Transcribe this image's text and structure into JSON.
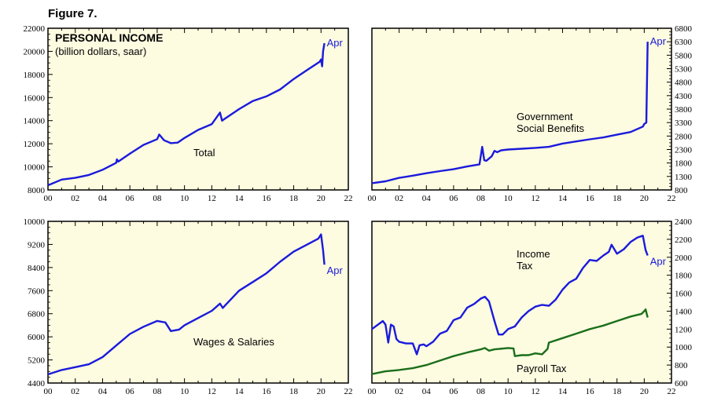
{
  "figure_label": "Figure 7.",
  "chart_data": [
    {
      "type": "line",
      "title": "PERSONAL INCOME",
      "subtitle": "(billion dollars, saar)",
      "x_ticks": [
        "00",
        "02",
        "04",
        "06",
        "08",
        "10",
        "12",
        "14",
        "16",
        "18",
        "20",
        "22"
      ],
      "xlim": [
        2000,
        2022
      ],
      "ylim": [
        8000,
        22000
      ],
      "y_ticks": [
        "8000",
        "10000",
        "12000",
        "14000",
        "16000",
        "18000",
        "20000",
        "22000"
      ],
      "y_axis_side": "left",
      "grid": false,
      "series": [
        {
          "name": "Total",
          "color": "#1a1adc",
          "end_label": "Apr",
          "x": [
            2000,
            2001,
            2002,
            2003,
            2004,
            2005,
            2005.05,
            2005.15,
            2006,
            2007,
            2008,
            2008.15,
            2008.5,
            2009,
            2009.5,
            2010,
            2011,
            2012,
            2012.6,
            2012.75,
            2013,
            2014,
            2015,
            2016,
            2017,
            2018,
            2019,
            2019.9,
            2020.0,
            2020.08,
            2020.15,
            2020.25
          ],
          "y": [
            8400,
            8900,
            9050,
            9300,
            9750,
            10350,
            10650,
            10450,
            11150,
            11900,
            12400,
            12800,
            12300,
            12050,
            12100,
            12500,
            13200,
            13700,
            14700,
            14000,
            14200,
            15000,
            15700,
            16100,
            16700,
            17600,
            18400,
            19100,
            19300,
            18700,
            20000,
            20700
          ]
        },
        {
          "name": "",
          "color": "#1a1adc",
          "end_label": "",
          "x": [],
          "y": []
        }
      ]
    },
    {
      "type": "line",
      "title": "",
      "x_ticks": [
        "00",
        "02",
        "04",
        "06",
        "08",
        "10",
        "12",
        "14",
        "16",
        "18",
        "20",
        "22"
      ],
      "xlim": [
        2000,
        2022
      ],
      "ylim": [
        800,
        6800
      ],
      "y_ticks": [
        "800",
        "1300",
        "1800",
        "2300",
        "2800",
        "3300",
        "3800",
        "4300",
        "4800",
        "5300",
        "5800",
        "6300",
        "6800"
      ],
      "y_axis_side": "right",
      "grid": false,
      "series": [
        {
          "name": "Government Social Benefits",
          "color": "#1a1adc",
          "end_label": "Apr",
          "x": [
            2000,
            2001,
            2002,
            2003,
            2004,
            2005,
            2006,
            2007,
            2007.9,
            2008.1,
            2008.25,
            2008.4,
            2008.8,
            2009,
            2009.2,
            2009.5,
            2010,
            2011,
            2012,
            2013,
            2014,
            2015,
            2016,
            2017,
            2018,
            2019,
            2019.9,
            2020.0,
            2020.15,
            2020.25
          ],
          "y": [
            1050,
            1120,
            1250,
            1330,
            1420,
            1500,
            1570,
            1670,
            1750,
            2400,
            1900,
            1880,
            2050,
            2250,
            2200,
            2270,
            2300,
            2330,
            2360,
            2400,
            2520,
            2600,
            2680,
            2750,
            2850,
            2950,
            3150,
            3250,
            3300,
            6300
          ]
        }
      ]
    },
    {
      "type": "line",
      "title": "",
      "x_ticks": [
        "00",
        "02",
        "04",
        "06",
        "08",
        "10",
        "12",
        "14",
        "16",
        "18",
        "20",
        "22"
      ],
      "xlim": [
        2000,
        2022
      ],
      "ylim": [
        4400,
        10000
      ],
      "y_ticks": [
        "4400",
        "5200",
        "6000",
        "6800",
        "7600",
        "8400",
        "9200",
        "10000"
      ],
      "y_axis_side": "left",
      "grid": false,
      "series": [
        {
          "name": "Wages & Salaries",
          "color": "#1a1adc",
          "end_label": "Apr",
          "x": [
            2000,
            2001,
            2002,
            2003,
            2004,
            2005,
            2006,
            2007,
            2008,
            2008.6,
            2009,
            2009.6,
            2010,
            2011,
            2012,
            2012.6,
            2012.8,
            2013,
            2014,
            2015,
            2016,
            2017,
            2018,
            2019,
            2019.8,
            2020.0,
            2020.15,
            2020.25
          ],
          "y": [
            4700,
            4850,
            4950,
            5050,
            5300,
            5700,
            6100,
            6350,
            6550,
            6500,
            6200,
            6250,
            6400,
            6650,
            6900,
            7150,
            7000,
            7100,
            7600,
            7900,
            8200,
            8600,
            8950,
            9200,
            9400,
            9550,
            9000,
            8500
          ]
        }
      ]
    },
    {
      "type": "line",
      "title": "",
      "x_ticks": [
        "00",
        "02",
        "04",
        "06",
        "08",
        "10",
        "12",
        "14",
        "16",
        "18",
        "20",
        "22"
      ],
      "xlim": [
        2000,
        2022
      ],
      "ylim": [
        600,
        2400
      ],
      "y_ticks": [
        "600",
        "800",
        "1000",
        "1200",
        "1400",
        "1600",
        "1800",
        "2000",
        "2200",
        "2400"
      ],
      "y_axis_side": "right",
      "grid": false,
      "series": [
        {
          "name": "Income Tax",
          "color": "#1a1adc",
          "end_label": "Apr",
          "x": [
            2000,
            2000.8,
            2001.0,
            2001.2,
            2001.4,
            2001.6,
            2001.8,
            2002,
            2002.5,
            2003,
            2003.3,
            2003.5,
            2003.8,
            2004,
            2004.5,
            2005,
            2005.5,
            2006,
            2006.5,
            2007,
            2007.5,
            2008,
            2008.3,
            2008.6,
            2009,
            2009.3,
            2009.6,
            2010,
            2010.5,
            2011,
            2011.5,
            2012,
            2012.5,
            2013,
            2013.5,
            2014,
            2014.5,
            2015,
            2015.5,
            2016,
            2016.5,
            2017,
            2017.4,
            2017.6,
            2018,
            2018.5,
            2019,
            2019.5,
            2019.9,
            2020.1,
            2020.25
          ],
          "y": [
            1200,
            1290,
            1250,
            1050,
            1250,
            1230,
            1090,
            1060,
            1040,
            1040,
            920,
            1020,
            1030,
            1010,
            1060,
            1150,
            1180,
            1300,
            1330,
            1440,
            1480,
            1540,
            1560,
            1510,
            1290,
            1140,
            1140,
            1200,
            1230,
            1330,
            1400,
            1450,
            1470,
            1460,
            1530,
            1640,
            1720,
            1760,
            1880,
            1970,
            1960,
            2020,
            2060,
            2140,
            2040,
            2090,
            2170,
            2220,
            2240,
            2080,
            2020
          ]
        },
        {
          "name": "Payroll Tax",
          "color": "#1a6e1a",
          "end_label": "",
          "x": [
            2000,
            2001,
            2002,
            2003,
            2004,
            2005,
            2006,
            2007,
            2008,
            2008.3,
            2008.6,
            2009,
            2010,
            2010.4,
            2010.5,
            2011,
            2011.5,
            2012,
            2012.5,
            2012.9,
            2013,
            2014,
            2015,
            2016,
            2017,
            2018,
            2019,
            2019.8,
            2020.0,
            2020.1,
            2020.25
          ],
          "y": [
            700,
            730,
            745,
            765,
            800,
            850,
            900,
            940,
            975,
            990,
            960,
            975,
            990,
            985,
            900,
            910,
            910,
            930,
            920,
            980,
            1050,
            1100,
            1150,
            1200,
            1240,
            1290,
            1340,
            1370,
            1400,
            1420,
            1330
          ]
        }
      ]
    }
  ],
  "annotations": {
    "p1_total_label": "Total",
    "p2_label_line1": "Government",
    "p2_label_line2": "Social Benefits",
    "p3_label": "Wages & Salaries",
    "p4_label_income_line1": "Income",
    "p4_label_income_line2": "Tax",
    "p4_label_payroll": "Payroll Tax"
  },
  "colors": {
    "plot_bg": "#fdfbe0",
    "axis": "#000000",
    "blue_line": "#1a1adc",
    "green_line": "#1a6e1a"
  }
}
